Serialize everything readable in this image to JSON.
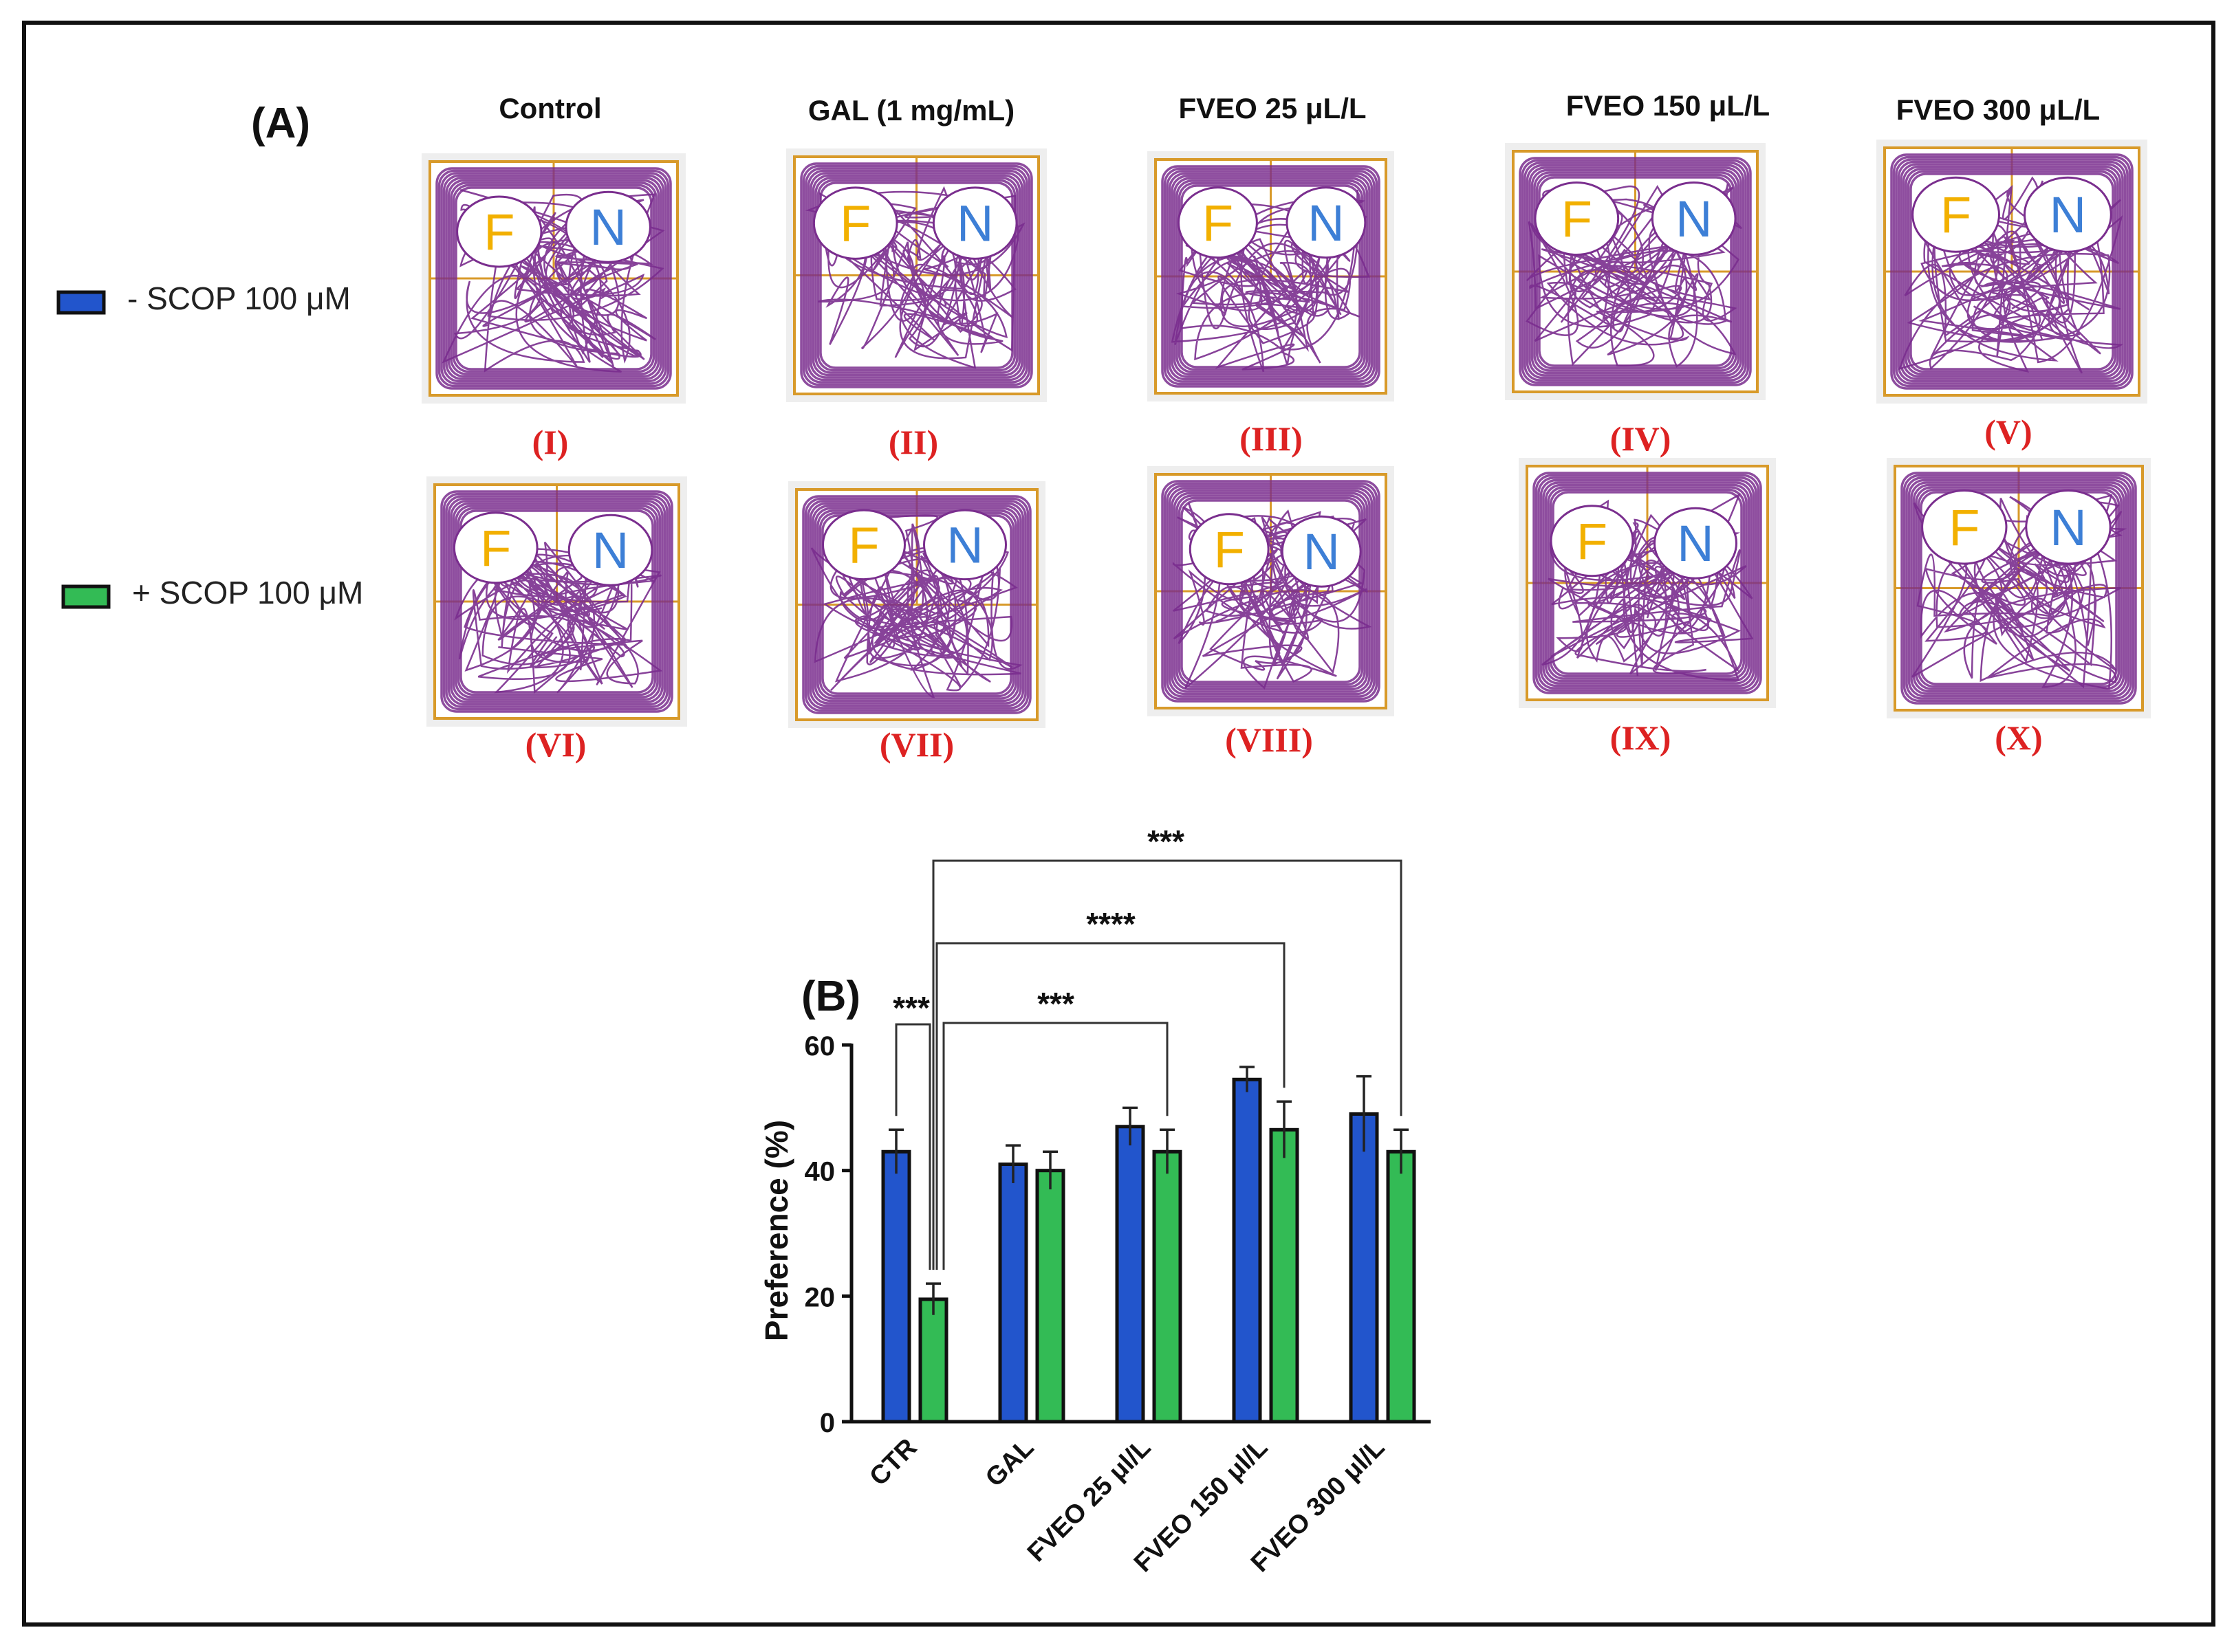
{
  "panel_a": {
    "label": "(A)",
    "legend": [
      {
        "label": "- SCOP 100 μM",
        "color": "#2255cc"
      },
      {
        "label": "+ SCOP 100 μM",
        "color": "#33bb55"
      }
    ],
    "columns": [
      "Control",
      "GAL (1 mg/mL)",
      "FVEO 25 μL/L",
      "FVEO 150 μL/L",
      "FVEO 300 μL/L"
    ],
    "row1_roman": [
      "(I)",
      "(II)",
      "(III)",
      "(IV)",
      "(V)"
    ],
    "row2_roman": [
      "(VI)",
      "(VII)",
      "(VIII)",
      "(IX)",
      "(X)"
    ],
    "object_labels": {
      "familiar": "F",
      "novel": "N"
    },
    "colors": {
      "track": "#7a2e8e",
      "arena_border": "#d89a2a",
      "familiar": "#f2b000",
      "novel": "#3d7fd6",
      "roman": "#dd2222"
    }
  },
  "chart_data": {
    "type": "bar",
    "panel_label": "(B)",
    "categories": [
      "CTR",
      "GAL",
      "FVEO 25 μl/L",
      "FVEO 150 μl/L",
      "FVEO 300 μl/L"
    ],
    "series": [
      {
        "name": "- SCOP 100 μM",
        "color": "#2255cc",
        "values": [
          43,
          41,
          47,
          54.5,
          49
        ],
        "errors": [
          3.5,
          3,
          3,
          2,
          6
        ]
      },
      {
        "name": "+ SCOP 100 μM",
        "color": "#33bb55",
        "values": [
          19.5,
          40,
          43,
          46.5,
          43
        ],
        "errors": [
          2.5,
          3,
          3.5,
          4.5,
          3.5
        ]
      }
    ],
    "ylabel": "Preference (%)",
    "xlabel": "",
    "ylim": [
      0,
      60
    ],
    "yticks": [
      0,
      20,
      40,
      60
    ],
    "significance": [
      {
        "label": "***",
        "from": "CTR (- SCOP)",
        "to": "CTR (+ SCOP)"
      },
      {
        "label": "***",
        "from": "CTR (+ SCOP)",
        "to": "FVEO 25 μl/L (+ SCOP)"
      },
      {
        "label": "****",
        "from": "CTR (+ SCOP)",
        "to": "FVEO 150 μl/L (+ SCOP)"
      },
      {
        "label": "***",
        "from": "CTR (+ SCOP)",
        "to": "FVEO 300 μl/L (+ SCOP)"
      }
    ]
  }
}
